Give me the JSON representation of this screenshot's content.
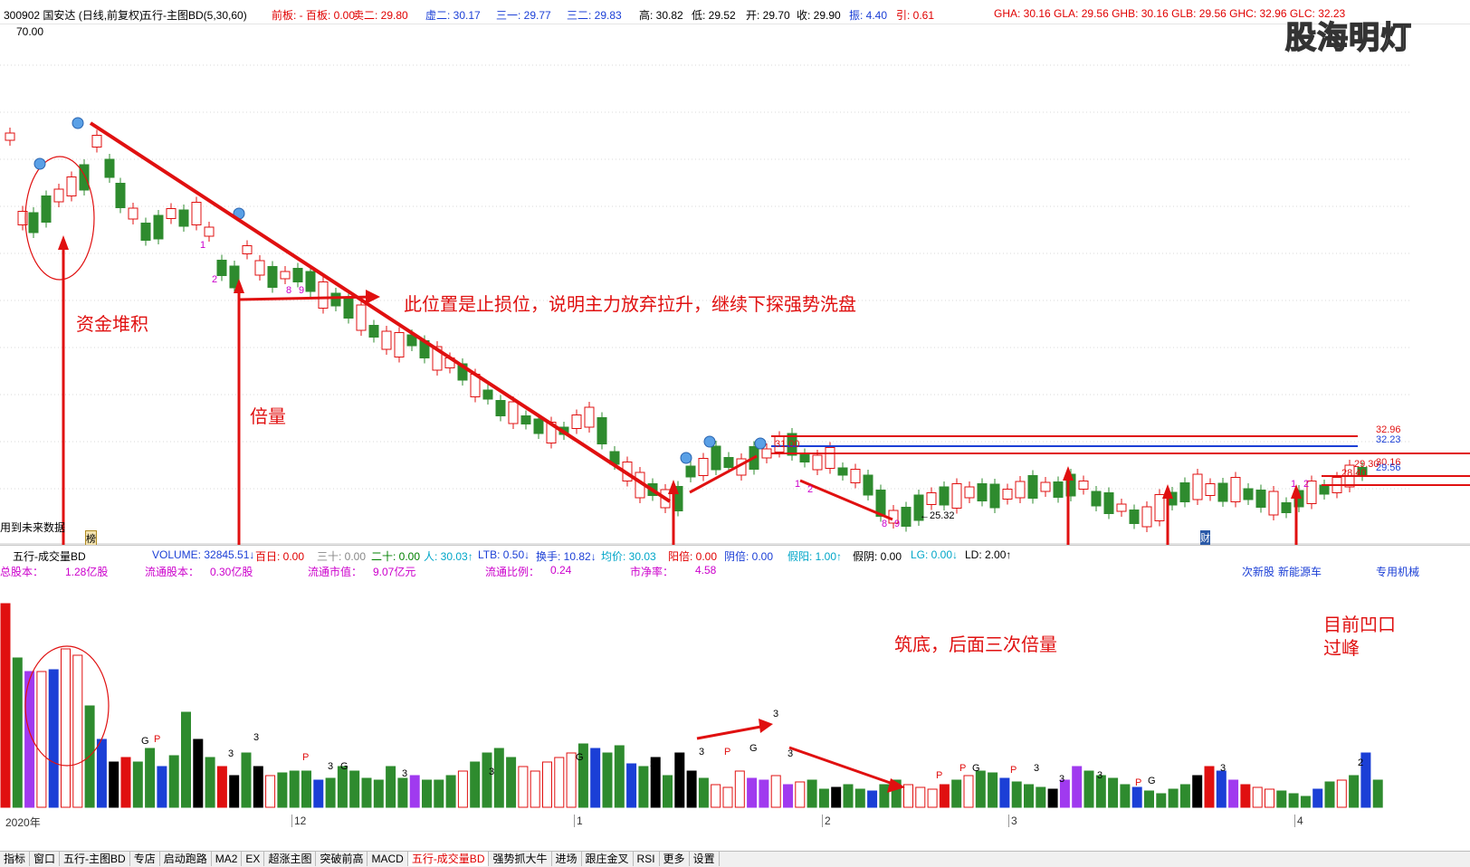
{
  "header": {
    "stock": "300902 国安达 (日线,前复权)",
    "indicator": "五行-主图BD(5,30,60)",
    "items": [
      {
        "label": "前板: - 百板: 0.00",
        "color": "red"
      },
      {
        "label": "卖二: 29.80",
        "color": "red"
      },
      {
        "label": "虚二: 30.17",
        "color": "blue"
      },
      {
        "label": "三一: 29.77",
        "color": "blue"
      },
      {
        "label": "三二: 29.83",
        "color": "blue"
      },
      {
        "label": "高: 30.82",
        "color": "black"
      },
      {
        "label": "低: 29.52",
        "color": "black"
      },
      {
        "label": "开: 29.70",
        "color": "black"
      },
      {
        "label": "收: 29.90",
        "color": "black"
      },
      {
        "label": "振: 4.40",
        "color": "blue"
      },
      {
        "label": "引: 0.61",
        "color": "red"
      }
    ],
    "right_items": "GHA: 30.16  GLA: 29.56  GHB: 30.16  GLB: 29.56  GHC: 32.96  GLC: 32.23"
  },
  "watermark": "股海明灯",
  "price_top": "70.00",
  "future_data": "用到未来数据",
  "badge_left": "榜",
  "badge_right": "财",
  "price_levels": [
    "32.96",
    "32.23",
    "30.16",
    "29.56",
    "29.30",
    "28.40",
    "31.00",
    "25.32"
  ],
  "candle_labels": [
    "1",
    "2",
    "8",
    "9",
    "1",
    "2",
    "8",
    "9",
    "1",
    "2"
  ],
  "annotations": {
    "fund_accumulation": "资金堆积",
    "double_volume": "倍量",
    "stop_loss": "此位置是止损位，说明主力放弃拉升，继续下探强势洗盘",
    "bottom_building": "筑底，后面三次倍量",
    "current_gap_line1": "目前凹口",
    "current_gap_line2": "过峰"
  },
  "volume_bar": {
    "title": "五行-成交量BD",
    "items": [
      {
        "label": "VOLUME: 32845.51↓",
        "color": "blue"
      },
      {
        "label": "百日: 0.00",
        "color": "red"
      },
      {
        "label": "三十: 0.00",
        "color": "gray"
      },
      {
        "label": "二十: 0.00",
        "color": "grn"
      },
      {
        "label": "人: 30.03↑",
        "color": "cyan"
      },
      {
        "label": "LTB: 0.50↓",
        "color": "blue"
      },
      {
        "label": "换手: 10.82↓",
        "color": "blue"
      },
      {
        "label": "均价: 30.03",
        "color": "cyan"
      },
      {
        "label": "阳倍: 0.00",
        "color": "red"
      },
      {
        "label": "阴倍: 0.00",
        "color": "blue"
      },
      {
        "label": "假阳: 1.00↑",
        "color": "cyan"
      },
      {
        "label": "假阴: 0.00",
        "color": "black"
      },
      {
        "label": "LG: 0.00↓",
        "color": "cyan"
      },
      {
        "label": "LD: 2.00↑",
        "color": "black"
      }
    ]
  },
  "stats": [
    {
      "label": "总股本：",
      "value": "1.28亿股"
    },
    {
      "label": "流通股本：",
      "value": "0.30亿股"
    },
    {
      "label": "流通市值：",
      "value": "9.07亿元"
    },
    {
      "label": "流通比例：",
      "value": "0.24"
    },
    {
      "label": "市净率：",
      "value": "4.58"
    }
  ],
  "tags": [
    "次新股",
    "新能源车",
    "专用机械"
  ],
  "vol_markers": [
    "G",
    "P",
    "3",
    "3",
    "P",
    "3",
    "G",
    "3",
    "3",
    "G",
    "3",
    "3",
    "P",
    "G",
    "3",
    "3",
    "P",
    "P",
    "G",
    "P",
    "3",
    "3",
    "3",
    "P",
    "G",
    "3",
    "2"
  ],
  "date_axis": [
    "2020年",
    "12",
    "1",
    "2",
    "3",
    "4"
  ],
  "tabs": [
    "指标",
    "窗口",
    "五行-主图BD",
    "专店",
    "启动跑路",
    "MA2",
    "EX",
    "超涨主图",
    "突破前高",
    "MACD",
    "五行-成交量BD",
    "强势抓大牛",
    "进场",
    "跟庄金叉",
    "RSI",
    "更多",
    "设置"
  ],
  "active_tab": "五行-成交量BD",
  "colors": {
    "up": "#e01010",
    "down": "#2e8b2e",
    "annotation": "#e01010",
    "level_red": "#e01010",
    "level_blue": "#1b3fd6"
  }
}
